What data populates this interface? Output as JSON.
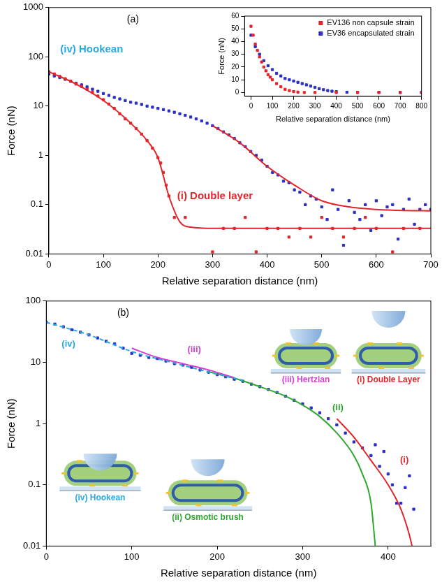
{
  "chart_data": [
    {
      "type": "scatter",
      "log": "y",
      "grid": false,
      "x_label": "Relative separation distance (nm)",
      "y_label": "Force (nN)",
      "xlim": [
        0,
        700
      ],
      "xticks": [
        0,
        100,
        200,
        300,
        400,
        500,
        600,
        700
      ],
      "ylim": [
        0.01,
        1000
      ],
      "yticks": [
        0.01,
        0.1,
        1,
        10,
        100,
        1000
      ],
      "annotations": [
        {
          "text": "(a)",
          "color": "#000000"
        },
        {
          "text": "(iv) Hookean",
          "color": "#29a9e1"
        },
        {
          "text": "(i) Double layer",
          "color": "#e3252b"
        }
      ],
      "series": [
        {
          "color": "#e3252b",
          "marker": "square",
          "x": [
            0,
            10,
            20,
            30,
            40,
            50,
            60,
            70,
            80,
            90,
            100,
            110,
            120,
            130,
            140,
            150,
            160,
            170,
            180,
            190,
            200,
            205,
            210,
            215,
            220,
            230,
            250,
            300,
            320,
            340,
            360,
            380,
            400,
            420,
            440,
            460,
            480,
            500,
            520,
            540,
            560,
            580,
            600,
            630,
            650,
            680
          ],
          "values": [
            50,
            45,
            40,
            36,
            32,
            28,
            25,
            22,
            19,
            16,
            13.5,
            11,
            9,
            7,
            5.5,
            4.5,
            3.5,
            2.7,
            2,
            1.4,
            0.9,
            0.7,
            0.45,
            0.25,
            0.15,
            0.055,
            0.055,
            0.011,
            0.033,
            0.033,
            0.055,
            0.011,
            0.033,
            0.033,
            0.022,
            0.033,
            0.022,
            0.055,
            0.033,
            0.022,
            0.033,
            0.055,
            0.033,
            0.011,
            0.033,
            0.033
          ]
        },
        {
          "color": "#2c30c4",
          "marker": "square",
          "x": [
            0,
            10,
            20,
            30,
            40,
            50,
            60,
            70,
            80,
            90,
            100,
            110,
            120,
            130,
            140,
            150,
            160,
            170,
            180,
            190,
            200,
            210,
            220,
            230,
            240,
            250,
            260,
            270,
            280,
            290,
            300,
            310,
            320,
            330,
            340,
            350,
            360,
            370,
            380,
            390,
            400,
            410,
            420,
            430,
            440,
            450,
            460,
            470,
            480,
            490,
            500,
            510,
            520,
            530,
            540,
            550,
            560,
            570,
            580,
            590,
            600,
            610,
            620,
            630,
            640,
            650,
            660,
            670,
            680,
            690,
            700
          ],
          "values": [
            45,
            41,
            38,
            35,
            32,
            29,
            27,
            24.5,
            22,
            20,
            18,
            16.5,
            15,
            14,
            13,
            12,
            11.5,
            10.8,
            10,
            9.5,
            9,
            8.5,
            8,
            7.5,
            7,
            6.5,
            6,
            5.5,
            5,
            4.5,
            4,
            3.5,
            3,
            2.6,
            2.2,
            1.8,
            1.5,
            1.2,
            1,
            0.8,
            0.6,
            0.45,
            0.4,
            0.3,
            0.28,
            0.2,
            0.18,
            0.1,
            0.15,
            0.13,
            0.09,
            0.05,
            0.2,
            0.08,
            0.015,
            0.12,
            0.07,
            0.05,
            0.1,
            0.03,
            0.12,
            0.06,
            0.09,
            0.1,
            0.02,
            0.08,
            0.13,
            0.04,
            0.08,
            0.1,
            0.08
          ]
        },
        {
          "type": "line",
          "color": "#e3252b",
          "marker": "none",
          "line_style": "solid",
          "x": [
            0,
            50,
            100,
            150,
            180,
            200,
            220,
            240,
            260,
            300,
            400,
            500,
            600,
            700
          ],
          "values": [
            50,
            28,
            13,
            4.5,
            2,
            0.9,
            0.15,
            0.045,
            0.035,
            0.033,
            0.033,
            0.033,
            0.033,
            0.033
          ]
        },
        {
          "type": "line",
          "color": "#e3252b",
          "marker": "none",
          "line_style": "solid",
          "x": [
            300,
            350,
            400,
            450,
            500,
            550,
            600,
            650,
            700
          ],
          "values": [
            4,
            1.8,
            0.6,
            0.25,
            0.12,
            0.09,
            0.08,
            0.076,
            0.075
          ]
        }
      ]
    },
    {
      "type": "scatter",
      "grid": false,
      "legend": "upper right",
      "x_label": "Relative separation distance (nm)",
      "y_label": "Force (nN)",
      "xlim": [
        -30,
        800
      ],
      "xticks": [
        0,
        100,
        200,
        300,
        400,
        500,
        600,
        700,
        800
      ],
      "ylim": [
        -3,
        60
      ],
      "yticks": [
        0,
        10,
        20,
        30,
        40,
        50,
        60
      ],
      "series": [
        {
          "name": "EV136 non capsule strain",
          "color": "#e3252b",
          "marker": "square",
          "x": [
            0,
            10,
            20,
            30,
            40,
            50,
            60,
            70,
            80,
            90,
            100,
            120,
            140,
            160,
            180,
            200,
            220,
            250,
            300,
            400,
            500,
            600,
            700,
            800
          ],
          "values": [
            52,
            45,
            38,
            33,
            28,
            24,
            20,
            17,
            14,
            12,
            10,
            7,
            4.5,
            2.5,
            1.5,
            0.7,
            0.3,
            0,
            0,
            0,
            0,
            0,
            0,
            0
          ]
        },
        {
          "name": "EV36 encapsulated strain",
          "color": "#2c30c4",
          "marker": "square",
          "x": [
            0,
            20,
            40,
            60,
            80,
            100,
            120,
            140,
            160,
            180,
            200,
            220,
            240,
            260,
            280,
            300,
            320,
            340,
            360,
            380,
            400,
            450,
            500,
            600,
            700,
            800
          ],
          "values": [
            45,
            36,
            30,
            25,
            21,
            18,
            15,
            13,
            11,
            10,
            9,
            8,
            7,
            6,
            5,
            4,
            3,
            2.2,
            1.5,
            1,
            0.6,
            0.2,
            0.1,
            0.1,
            0,
            0
          ]
        }
      ]
    },
    {
      "type": "scatter",
      "log": "y",
      "grid": false,
      "x_label": "Relative separation distance (nm)",
      "y_label": "Force (nN)",
      "xlim": [
        0,
        450
      ],
      "xticks": [
        0,
        100,
        200,
        300,
        400
      ],
      "ylim": [
        0.01,
        100
      ],
      "yticks": [
        0.01,
        0.1,
        1,
        10,
        100
      ],
      "annotations": [
        {
          "text": "(b)",
          "color": "#000000"
        }
      ],
      "series": [
        {
          "color": "#2c30c4",
          "marker": "square",
          "x": [
            0,
            10,
            20,
            30,
            40,
            50,
            60,
            70,
            80,
            90,
            100,
            110,
            120,
            130,
            140,
            150,
            160,
            170,
            180,
            190,
            200,
            210,
            220,
            230,
            240,
            250,
            260,
            270,
            280,
            290,
            300,
            310,
            320,
            330,
            340,
            350,
            360,
            370,
            380,
            385,
            390,
            395,
            400,
            405,
            410,
            415,
            420,
            425,
            430
          ],
          "values": [
            45,
            42,
            38,
            34,
            31,
            28,
            25,
            22,
            20,
            17,
            14,
            13,
            12,
            11.5,
            10.5,
            9.5,
            9,
            8.3,
            7.5,
            6.9,
            6.3,
            5.8,
            5.3,
            4.9,
            4.4,
            4,
            3.6,
            3.2,
            2.8,
            2.4,
            2.1,
            1.8,
            1.5,
            1.2,
            0.95,
            0.7,
            0.5,
            0.4,
            0.3,
            0.45,
            0.2,
            0.35,
            0.15,
            0.1,
            0.05,
            0.05,
            0.09,
            0.14,
            0.04
          ]
        },
        {
          "name": "(iv) Hookean",
          "label": "(iv)",
          "type": "line",
          "color": "#29a9e1",
          "marker": "none",
          "line_style": "dashed",
          "x": [
            0,
            50,
            100,
            150,
            200,
            230
          ],
          "values": [
            45,
            28,
            15,
            9.7,
            6.4,
            5.1
          ]
        },
        {
          "name": "(iii) Hertzian",
          "label": "(iii)",
          "type": "line",
          "color": "#d63fd6",
          "marker": "none",
          "line_style": "solid",
          "x": [
            100,
            130,
            160,
            190,
            220
          ],
          "values": [
            17,
            12,
            9.5,
            7.5,
            5.6
          ]
        },
        {
          "name": "(ii) Osmotic brush",
          "label": "(ii)",
          "type": "line",
          "color": "#2ea82e",
          "marker": "none",
          "line_style": "solid",
          "x": [
            190,
            220,
            250,
            280,
            300,
            320,
            340,
            360,
            370,
            380,
            385
          ],
          "values": [
            7,
            5.5,
            4,
            2.8,
            2,
            1.3,
            0.7,
            0.3,
            0.15,
            0.05,
            0.01
          ]
        },
        {
          "name": "(i) Double Layer",
          "label": "(i)",
          "type": "line",
          "color": "#e3252b",
          "marker": "none",
          "line_style": "solid",
          "x": [
            340,
            360,
            380,
            400,
            415,
            425,
            428
          ],
          "values": [
            1.2,
            0.6,
            0.25,
            0.1,
            0.04,
            0.015,
            0.01
          ]
        }
      ]
    }
  ]
}
